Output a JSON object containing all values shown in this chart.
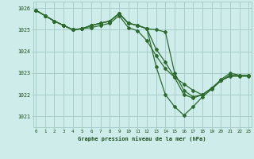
{
  "title": "Graphe pression niveau de la mer (hPa)",
  "background_color": "#ceecea",
  "grid_color": "#a8ceca",
  "line_color": "#2d6a2d",
  "text_color": "#1a4a1a",
  "ylim": [
    1020.5,
    1026.3
  ],
  "xlim": [
    -0.3,
    23.3
  ],
  "yticks": [
    1021,
    1022,
    1023,
    1024,
    1025,
    1026
  ],
  "xticks": [
    0,
    1,
    2,
    3,
    4,
    5,
    6,
    7,
    8,
    9,
    10,
    11,
    12,
    13,
    14,
    15,
    16,
    17,
    18,
    19,
    20,
    21,
    22,
    23
  ],
  "series": [
    [
      1025.9,
      1025.65,
      1025.4,
      1025.2,
      1025.0,
      1025.05,
      1025.1,
      1025.2,
      1025.3,
      1025.65,
      1025.1,
      1024.95,
      1024.5,
      1023.8,
      1023.2,
      1022.8,
      1022.5,
      1022.2,
      1022.0,
      1022.3,
      1022.7,
      1023.0,
      1022.9,
      1022.9
    ],
    [
      1025.9,
      1025.65,
      1025.4,
      1025.2,
      1025.0,
      1025.05,
      1025.2,
      1025.3,
      1025.4,
      1025.75,
      1025.3,
      1025.2,
      1025.05,
      1025.0,
      1024.9,
      1023.0,
      1022.2,
      1021.9,
      1022.0,
      1022.3,
      1022.65,
      1022.85,
      1022.85,
      1022.85
    ],
    [
      1025.9,
      1025.65,
      1025.4,
      1025.2,
      1025.0,
      1025.05,
      1025.2,
      1025.3,
      1025.4,
      1025.75,
      1025.3,
      1025.2,
      1025.05,
      1023.3,
      1022.0,
      1021.45,
      1021.05,
      1021.45,
      1021.9,
      1022.25,
      1022.65,
      1022.9,
      1022.9,
      1022.9
    ],
    [
      1025.9,
      1025.65,
      1025.4,
      1025.2,
      1025.0,
      1025.05,
      1025.2,
      1025.3,
      1025.4,
      1025.75,
      1025.3,
      1025.2,
      1025.05,
      1024.1,
      1023.5,
      1022.8,
      1022.0,
      1021.85,
      1022.0,
      1022.3,
      1022.65,
      1022.9,
      1022.9,
      1022.9
    ]
  ]
}
